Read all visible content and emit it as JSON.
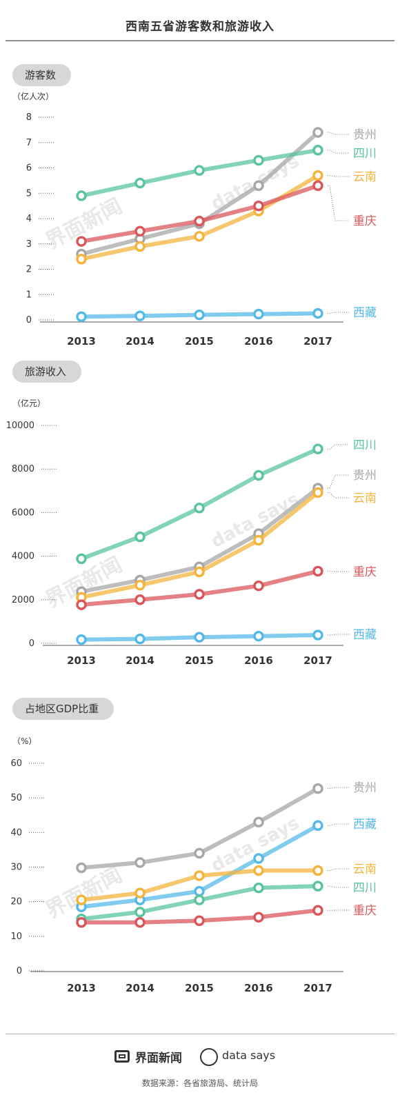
{
  "title": "西南五省游客数和旅游收入",
  "footer": {
    "brand_jiemian": "界面新闻",
    "brand_datasays": "data says",
    "source": "数据来源：各省旅游局、统计局"
  },
  "colors": {
    "贵州": "#a7a7a7",
    "四川": "#5ac59d",
    "云南": "#f4b43c",
    "重庆": "#d9575b",
    "西藏": "#55b9e8"
  },
  "chart_data": [
    {
      "type": "line",
      "title": "游客数",
      "ylabel": "（亿人次）",
      "categories": [
        "2013",
        "2014",
        "2015",
        "2016",
        "2017"
      ],
      "ylim": [
        0,
        8
      ],
      "yticks": [
        "0",
        "1",
        "2",
        "3",
        "4",
        "5",
        "6",
        "7",
        "8"
      ],
      "series": [
        {
          "name": "贵州",
          "values": [
            2.6,
            3.2,
            3.8,
            5.3,
            7.4
          ]
        },
        {
          "name": "四川",
          "values": [
            4.9,
            5.4,
            5.9,
            6.3,
            6.7
          ]
        },
        {
          "name": "云南",
          "values": [
            2.4,
            2.9,
            3.3,
            4.3,
            5.7
          ]
        },
        {
          "name": "重庆",
          "values": [
            3.1,
            3.5,
            3.9,
            4.5,
            5.3
          ]
        },
        {
          "name": "西藏",
          "values": [
            0.13,
            0.16,
            0.2,
            0.23,
            0.26
          ]
        }
      ],
      "legend_order": [
        "贵州",
        "四川",
        "云南",
        "重庆",
        "西藏"
      ]
    },
    {
      "type": "line",
      "title": "旅游收入",
      "ylabel": "（亿元）",
      "categories": [
        "2013",
        "2014",
        "2015",
        "2016",
        "2017"
      ],
      "ylim": [
        0,
        10000
      ],
      "yticks": [
        "0",
        "2000",
        "4000",
        "6000",
        "8000",
        "10000"
      ],
      "series": [
        {
          "name": "四川",
          "values": [
            3880,
            4890,
            6210,
            7710,
            8920
          ]
        },
        {
          "name": "贵州",
          "values": [
            2370,
            2900,
            3510,
            5030,
            7120
          ]
        },
        {
          "name": "云南",
          "values": [
            2110,
            2670,
            3280,
            4730,
            6920
          ]
        },
        {
          "name": "重庆",
          "values": [
            1770,
            2000,
            2250,
            2640,
            3310
          ]
        },
        {
          "name": "西藏",
          "values": [
            170,
            200,
            280,
            330,
            380
          ]
        }
      ],
      "legend_order": [
        "四川",
        "贵州",
        "云南",
        "重庆",
        "西藏"
      ]
    },
    {
      "type": "line",
      "title": "占地区GDP比重",
      "ylabel": "（%）",
      "categories": [
        "2013",
        "2014",
        "2015",
        "2016",
        "2017"
      ],
      "ylim": [
        0,
        60
      ],
      "yticks": [
        "0",
        "10",
        "20",
        "30",
        "40",
        "50",
        "60"
      ],
      "series": [
        {
          "name": "贵州",
          "values": [
            29.8,
            31.3,
            34,
            43,
            52.7
          ]
        },
        {
          "name": "西藏",
          "values": [
            18.5,
            20.5,
            23,
            32.5,
            42
          ]
        },
        {
          "name": "云南",
          "values": [
            20.5,
            22.5,
            27.5,
            29,
            29
          ]
        },
        {
          "name": "四川",
          "values": [
            15,
            17,
            20.5,
            24,
            24.5
          ]
        },
        {
          "name": "重庆",
          "values": [
            14,
            14,
            14.5,
            15.5,
            17.5
          ]
        }
      ],
      "legend_order": [
        "贵州",
        "西藏",
        "云南",
        "四川",
        "重庆"
      ]
    }
  ]
}
